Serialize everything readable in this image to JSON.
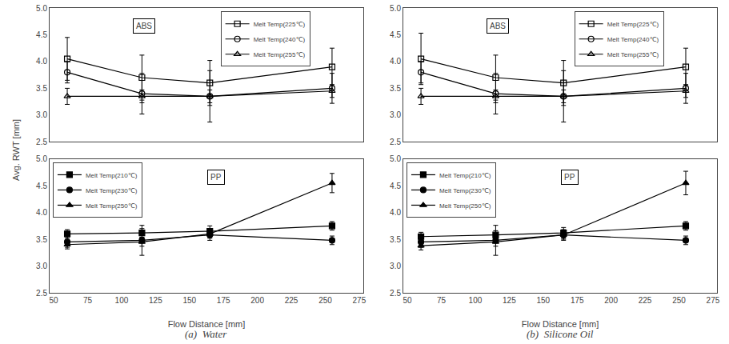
{
  "chart_data": [
    {
      "type": "line",
      "ylabel": "Avg. RWT [mm]",
      "annotations": [
        "ABS"
      ],
      "x": [
        60,
        115,
        165,
        255
      ],
      "xlim": [
        47,
        278
      ],
      "xticks": [
        50,
        75,
        100,
        125,
        150,
        175,
        200,
        225,
        250,
        275
      ],
      "ylim": [
        2.5,
        5.0
      ],
      "yticks": [
        2.5,
        {
          "value": 3.0,
          "label": "3.0"
        },
        3.5,
        {
          "value": 4.0,
          "label": "4.0"
        },
        4.5,
        {
          "value": 5.0,
          "label": "5.0"
        }
      ],
      "tick_labels": "y",
      "grid": false,
      "legend": "upper right",
      "color": "#000000",
      "series": [
        {
          "name": "Melt Temp(225℃)",
          "marker": "square-open",
          "values": [
            4.05,
            3.7,
            3.6,
            3.9
          ],
          "yerr": [
            0.4,
            0.42,
            0.42,
            0.35
          ]
        },
        {
          "name": "Melt Temp(240℃)",
          "marker": "circle-open",
          "values": [
            3.8,
            3.4,
            3.35,
            3.5
          ],
          "yerr": [
            0.2,
            0.38,
            0.48,
            0.28
          ]
        },
        {
          "name": "Melt Temp(255℃)",
          "marker": "triangle-up-open",
          "values": [
            3.35,
            3.35,
            3.35,
            3.45
          ],
          "yerr": [
            0.15,
            0.12,
            0.12,
            0.12
          ]
        }
      ]
    },
    {
      "type": "line",
      "xlabel": "Flow Distance [mm]",
      "subtitle": "(a)  Water",
      "annotations": [
        "PP"
      ],
      "x": [
        60,
        115,
        165,
        255
      ],
      "xlim": [
        47,
        278
      ],
      "xticks": [
        50,
        75,
        100,
        125,
        150,
        175,
        200,
        225,
        250,
        275
      ],
      "ylim": [
        2.5,
        5.0
      ],
      "yticks": [
        2.5,
        {
          "value": 3.0,
          "label": "3.0"
        },
        3.5,
        {
          "value": 4.0,
          "label": "4.0"
        },
        4.5,
        {
          "value": 5.0,
          "label": "5.0"
        }
      ],
      "grid": false,
      "legend": "upper left",
      "color": "#000000",
      "series": [
        {
          "name": "Melt Temp(210℃)",
          "marker": "square",
          "values": [
            3.6,
            3.62,
            3.65,
            3.75
          ],
          "yerr": [
            0.08,
            0.08,
            0.1,
            0.08
          ]
        },
        {
          "name": "Melt Temp(230℃)",
          "marker": "circle",
          "values": [
            3.45,
            3.48,
            3.58,
            3.48
          ],
          "yerr": [
            0.1,
            0.28,
            0.1,
            0.08
          ]
        },
        {
          "name": "Melt Temp(250℃)",
          "marker": "triangle-up",
          "values": [
            3.4,
            3.45,
            3.6,
            4.55
          ],
          "yerr": [
            0.08,
            0.08,
            0.08,
            0.18
          ]
        }
      ]
    },
    {
      "type": "line",
      "annotations": [
        "ABS"
      ],
      "x": [
        60,
        115,
        165,
        255
      ],
      "xlim": [
        47,
        278
      ],
      "xticks": [
        50,
        75,
        100,
        125,
        150,
        175,
        200,
        225,
        250,
        275
      ],
      "ylim": [
        2.5,
        5.0
      ],
      "yticks": [
        2.5,
        {
          "value": 3.0,
          "label": "3.0"
        },
        3.5,
        {
          "value": 4.0,
          "label": "4.0"
        },
        4.5,
        {
          "value": 5.0,
          "label": "5.0"
        }
      ],
      "tick_labels": "y",
      "grid": false,
      "legend": "upper right",
      "color": "#000000",
      "series": [
        {
          "name": "Melt Temp(225℃)",
          "marker": "square-open",
          "values": [
            4.05,
            3.7,
            3.6,
            3.9
          ],
          "yerr": [
            0.48,
            0.42,
            0.42,
            0.35
          ]
        },
        {
          "name": "Melt Temp(240℃)",
          "marker": "circle-open",
          "values": [
            3.8,
            3.4,
            3.35,
            3.5
          ],
          "yerr": [
            0.2,
            0.38,
            0.48,
            0.28
          ]
        },
        {
          "name": "Melt Temp(255℃)",
          "marker": "triangle-up-open",
          "values": [
            3.35,
            3.35,
            3.35,
            3.45
          ],
          "yerr": [
            0.15,
            0.12,
            0.12,
            0.12
          ]
        }
      ]
    },
    {
      "type": "line",
      "xlabel": "Flow Distance [mm]",
      "subtitle": "(b)  Silicone Oil",
      "annotations": [
        "PP"
      ],
      "x": [
        60,
        115,
        165,
        255
      ],
      "xlim": [
        47,
        278
      ],
      "xticks": [
        50,
        75,
        100,
        125,
        150,
        175,
        200,
        225,
        250,
        275
      ],
      "ylim": [
        2.5,
        5.0
      ],
      "yticks": [
        2.5,
        {
          "value": 3.0,
          "label": "3.0"
        },
        3.5,
        {
          "value": 4.0,
          "label": "4.0"
        },
        4.5,
        {
          "value": 5.0,
          "label": "5.0"
        }
      ],
      "grid": false,
      "legend": "upper left",
      "color": "#000000",
      "series": [
        {
          "name": "Melt Temp(210℃)",
          "marker": "square",
          "values": [
            3.55,
            3.58,
            3.62,
            3.75
          ],
          "yerr": [
            0.08,
            0.08,
            0.1,
            0.08
          ]
        },
        {
          "name": "Melt Temp(230℃)",
          "marker": "circle",
          "values": [
            3.45,
            3.48,
            3.58,
            3.48
          ],
          "yerr": [
            0.1,
            0.28,
            0.1,
            0.08
          ]
        },
        {
          "name": "Melt Temp(250℃)",
          "marker": "triangle-up",
          "values": [
            3.38,
            3.45,
            3.58,
            4.55
          ],
          "yerr": [
            0.08,
            0.08,
            0.08,
            0.22
          ]
        }
      ]
    }
  ]
}
